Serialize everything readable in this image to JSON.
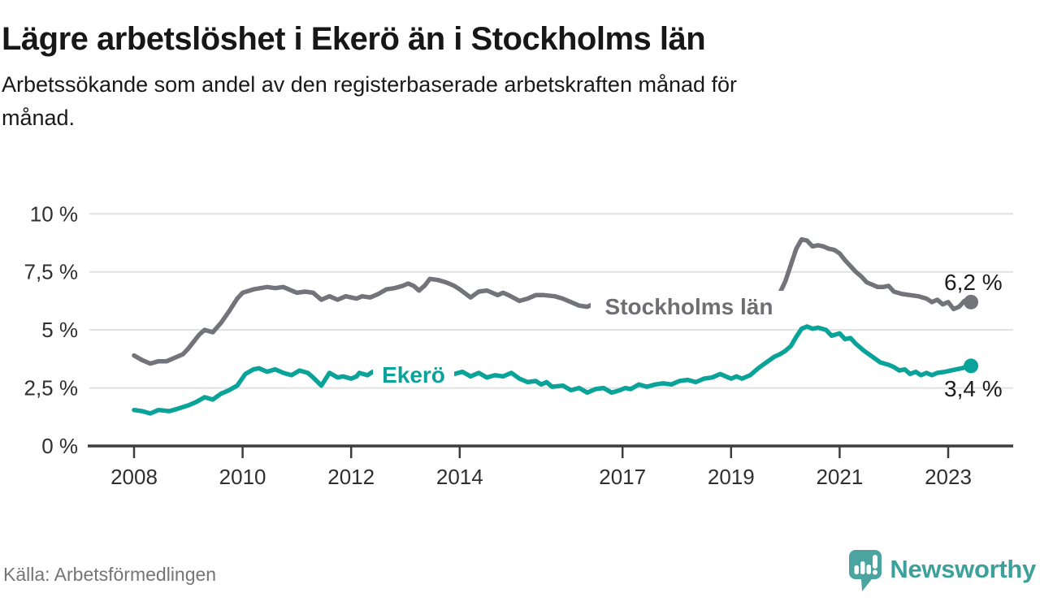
{
  "header": {
    "title": "Lägre arbetslöshet i Ekerö än i Stockholms län",
    "subtitle_lines": [
      "Arbetssökande som andel av den registerbaserade arbetskraften månad för",
      "månad."
    ]
  },
  "footer": {
    "source": "Källa: Arbetsförmedlingen",
    "brand": "Newsworthy"
  },
  "colors": {
    "series_gray": "#73737a",
    "series_gray_label": "#6e6e73",
    "series_teal": "#0aa39a",
    "grid": "#e1e1e1",
    "axis": "#3d3d3d",
    "tick_text": "#2f2f2f",
    "value_label_text": "#1c1c1c",
    "brand_teal": "#4ba49f"
  },
  "chart_data": {
    "type": "line",
    "title": "Lägre arbetslöshet i Ekerö än i Stockholms län",
    "subtitle": "Arbetssökande som andel av den registerbaserade arbetskraften månad för månad.",
    "source": "Källa: Arbetsförmedlingen",
    "xlabel": "",
    "ylabel": "",
    "grid": true,
    "legend_position": "inline",
    "xlim": [
      2007.2,
      2024.2
    ],
    "ylim": [
      0,
      10
    ],
    "y_ticks": [
      {
        "value": 0,
        "label": "0 %"
      },
      {
        "value": 2.5,
        "label": "2,5 %"
      },
      {
        "value": 5,
        "label": "5 %"
      },
      {
        "value": 7.5,
        "label": "7,5 %"
      },
      {
        "value": 10,
        "label": "10 %"
      }
    ],
    "x_ticks": [
      {
        "value": 2008,
        "label": "2008"
      },
      {
        "value": 2010,
        "label": "2010"
      },
      {
        "value": 2012,
        "label": "2012"
      },
      {
        "value": 2014,
        "label": "2014"
      },
      {
        "value": 2017,
        "label": "2017"
      },
      {
        "value": 2019,
        "label": "2019"
      },
      {
        "value": 2021,
        "label": "2021"
      },
      {
        "value": 2023,
        "label": "2023"
      }
    ],
    "series": [
      {
        "name": "Stockholms län",
        "color": "#73737a",
        "label_color": "#6e6e73",
        "end_label": "6,2 %",
        "end_value": 6.2,
        "points": [
          [
            2008.0,
            3.9
          ],
          [
            2008.15,
            3.7
          ],
          [
            2008.3,
            3.55
          ],
          [
            2008.45,
            3.65
          ],
          [
            2008.6,
            3.65
          ],
          [
            2008.75,
            3.8
          ],
          [
            2008.9,
            3.95
          ],
          [
            2009.0,
            4.2
          ],
          [
            2009.2,
            4.8
          ],
          [
            2009.3,
            5.0
          ],
          [
            2009.45,
            4.9
          ],
          [
            2009.6,
            5.3
          ],
          [
            2009.75,
            5.8
          ],
          [
            2009.9,
            6.35
          ],
          [
            2010.0,
            6.6
          ],
          [
            2010.2,
            6.75
          ],
          [
            2010.45,
            6.85
          ],
          [
            2010.6,
            6.8
          ],
          [
            2010.75,
            6.85
          ],
          [
            2010.9,
            6.7
          ],
          [
            2011.0,
            6.6
          ],
          [
            2011.15,
            6.65
          ],
          [
            2011.3,
            6.6
          ],
          [
            2011.45,
            6.3
          ],
          [
            2011.6,
            6.45
          ],
          [
            2011.75,
            6.3
          ],
          [
            2011.9,
            6.45
          ],
          [
            2012.0,
            6.4
          ],
          [
            2012.1,
            6.35
          ],
          [
            2012.2,
            6.45
          ],
          [
            2012.35,
            6.4
          ],
          [
            2012.5,
            6.55
          ],
          [
            2012.65,
            6.75
          ],
          [
            2012.8,
            6.8
          ],
          [
            2012.95,
            6.9
          ],
          [
            2013.05,
            7.0
          ],
          [
            2013.15,
            6.9
          ],
          [
            2013.25,
            6.7
          ],
          [
            2013.35,
            6.9
          ],
          [
            2013.45,
            7.2
          ],
          [
            2013.6,
            7.15
          ],
          [
            2013.75,
            7.05
          ],
          [
            2013.9,
            6.9
          ],
          [
            2014.0,
            6.75
          ],
          [
            2014.2,
            6.4
          ],
          [
            2014.35,
            6.65
          ],
          [
            2014.5,
            6.7
          ],
          [
            2014.6,
            6.6
          ],
          [
            2014.7,
            6.5
          ],
          [
            2014.8,
            6.6
          ],
          [
            2014.9,
            6.5
          ],
          [
            2015.1,
            6.25
          ],
          [
            2015.25,
            6.35
          ],
          [
            2015.4,
            6.5
          ],
          [
            2015.55,
            6.5
          ],
          [
            2015.75,
            6.45
          ],
          [
            2015.9,
            6.35
          ],
          [
            2016.05,
            6.2
          ],
          [
            2016.2,
            6.05
          ],
          [
            2016.35,
            6.0
          ],
          [
            2016.45,
            6.1
          ],
          [
            2016.55,
            6.05
          ],
          [
            2016.75,
            6.0
          ],
          [
            2017.0,
            5.95
          ],
          [
            2017.25,
            5.9
          ],
          [
            2017.5,
            5.85
          ],
          [
            2017.75,
            5.85
          ],
          [
            2018.0,
            5.9
          ],
          [
            2018.25,
            5.9
          ],
          [
            2018.5,
            5.95
          ],
          [
            2018.75,
            6.0
          ],
          [
            2019.0,
            6.05
          ],
          [
            2019.25,
            6.1
          ],
          [
            2019.5,
            6.2
          ],
          [
            2019.65,
            6.3
          ],
          [
            2019.8,
            6.45
          ],
          [
            2019.9,
            6.6
          ],
          [
            2020.0,
            7.1
          ],
          [
            2020.1,
            7.8
          ],
          [
            2020.2,
            8.5
          ],
          [
            2020.3,
            8.9
          ],
          [
            2020.4,
            8.85
          ],
          [
            2020.5,
            8.6
          ],
          [
            2020.6,
            8.65
          ],
          [
            2020.7,
            8.6
          ],
          [
            2020.8,
            8.5
          ],
          [
            2020.9,
            8.45
          ],
          [
            2021.0,
            8.3
          ],
          [
            2021.1,
            8.0
          ],
          [
            2021.2,
            7.75
          ],
          [
            2021.3,
            7.5
          ],
          [
            2021.4,
            7.3
          ],
          [
            2021.5,
            7.05
          ],
          [
            2021.6,
            6.95
          ],
          [
            2021.7,
            6.85
          ],
          [
            2021.8,
            6.85
          ],
          [
            2021.9,
            6.9
          ],
          [
            2022.0,
            6.65
          ],
          [
            2022.15,
            6.55
          ],
          [
            2022.3,
            6.5
          ],
          [
            2022.45,
            6.45
          ],
          [
            2022.6,
            6.35
          ],
          [
            2022.7,
            6.2
          ],
          [
            2022.8,
            6.3
          ],
          [
            2022.9,
            6.1
          ],
          [
            2023.0,
            6.2
          ],
          [
            2023.1,
            5.9
          ],
          [
            2023.2,
            6.0
          ],
          [
            2023.3,
            6.25
          ],
          [
            2023.42,
            6.2
          ]
        ]
      },
      {
        "name": "Ekerö",
        "color": "#0aa39a",
        "label_color": "#0aa39a",
        "end_label": "3,4 %",
        "end_value": 3.4,
        "points": [
          [
            2008.0,
            1.55
          ],
          [
            2008.15,
            1.5
          ],
          [
            2008.3,
            1.4
          ],
          [
            2008.45,
            1.55
          ],
          [
            2008.65,
            1.5
          ],
          [
            2008.8,
            1.6
          ],
          [
            2009.0,
            1.75
          ],
          [
            2009.15,
            1.9
          ],
          [
            2009.3,
            2.1
          ],
          [
            2009.45,
            2.0
          ],
          [
            2009.6,
            2.25
          ],
          [
            2009.75,
            2.4
          ],
          [
            2009.9,
            2.6
          ],
          [
            2010.05,
            3.1
          ],
          [
            2010.2,
            3.3
          ],
          [
            2010.3,
            3.35
          ],
          [
            2010.45,
            3.2
          ],
          [
            2010.6,
            3.3
          ],
          [
            2010.75,
            3.15
          ],
          [
            2010.9,
            3.05
          ],
          [
            2011.05,
            3.25
          ],
          [
            2011.2,
            3.15
          ],
          [
            2011.3,
            2.95
          ],
          [
            2011.45,
            2.6
          ],
          [
            2011.6,
            3.15
          ],
          [
            2011.75,
            2.95
          ],
          [
            2011.85,
            3.0
          ],
          [
            2012.0,
            2.9
          ],
          [
            2012.1,
            3.0
          ],
          [
            2012.15,
            3.15
          ],
          [
            2012.3,
            3.05
          ],
          [
            2012.4,
            3.2
          ],
          [
            2012.5,
            3.15
          ],
          [
            2012.75,
            3.2
          ],
          [
            2013.0,
            3.1
          ],
          [
            2013.3,
            3.2
          ],
          [
            2013.55,
            3.25
          ],
          [
            2013.75,
            3.2
          ],
          [
            2013.9,
            3.1
          ],
          [
            2014.05,
            3.2
          ],
          [
            2014.2,
            3.0
          ],
          [
            2014.35,
            3.15
          ],
          [
            2014.5,
            2.95
          ],
          [
            2014.65,
            3.05
          ],
          [
            2014.8,
            3.0
          ],
          [
            2014.95,
            3.15
          ],
          [
            2015.1,
            2.9
          ],
          [
            2015.25,
            2.75
          ],
          [
            2015.4,
            2.8
          ],
          [
            2015.5,
            2.65
          ],
          [
            2015.6,
            2.75
          ],
          [
            2015.7,
            2.55
          ],
          [
            2015.9,
            2.6
          ],
          [
            2016.05,
            2.4
          ],
          [
            2016.2,
            2.5
          ],
          [
            2016.35,
            2.3
          ],
          [
            2016.5,
            2.45
          ],
          [
            2016.65,
            2.5
          ],
          [
            2016.8,
            2.3
          ],
          [
            2016.95,
            2.4
          ],
          [
            2017.05,
            2.5
          ],
          [
            2017.15,
            2.45
          ],
          [
            2017.3,
            2.65
          ],
          [
            2017.45,
            2.55
          ],
          [
            2017.6,
            2.65
          ],
          [
            2017.75,
            2.7
          ],
          [
            2017.9,
            2.65
          ],
          [
            2018.05,
            2.8
          ],
          [
            2018.2,
            2.85
          ],
          [
            2018.35,
            2.75
          ],
          [
            2018.5,
            2.9
          ],
          [
            2018.65,
            2.95
          ],
          [
            2018.8,
            3.1
          ],
          [
            2018.9,
            3.0
          ],
          [
            2019.0,
            2.9
          ],
          [
            2019.1,
            3.0
          ],
          [
            2019.2,
            2.9
          ],
          [
            2019.35,
            3.05
          ],
          [
            2019.5,
            3.35
          ],
          [
            2019.65,
            3.6
          ],
          [
            2019.8,
            3.85
          ],
          [
            2019.9,
            3.95
          ],
          [
            2020.0,
            4.1
          ],
          [
            2020.1,
            4.3
          ],
          [
            2020.2,
            4.7
          ],
          [
            2020.3,
            5.05
          ],
          [
            2020.4,
            5.15
          ],
          [
            2020.5,
            5.05
          ],
          [
            2020.6,
            5.1
          ],
          [
            2020.75,
            5.0
          ],
          [
            2020.85,
            4.75
          ],
          [
            2021.0,
            4.85
          ],
          [
            2021.1,
            4.6
          ],
          [
            2021.2,
            4.65
          ],
          [
            2021.3,
            4.4
          ],
          [
            2021.45,
            4.1
          ],
          [
            2021.6,
            3.85
          ],
          [
            2021.75,
            3.6
          ],
          [
            2021.9,
            3.5
          ],
          [
            2022.0,
            3.4
          ],
          [
            2022.1,
            3.25
          ],
          [
            2022.2,
            3.3
          ],
          [
            2022.3,
            3.1
          ],
          [
            2022.4,
            3.2
          ],
          [
            2022.5,
            3.05
          ],
          [
            2022.6,
            3.15
          ],
          [
            2022.7,
            3.05
          ],
          [
            2022.8,
            3.15
          ],
          [
            2022.95,
            3.2
          ],
          [
            2023.05,
            3.25
          ],
          [
            2023.15,
            3.3
          ],
          [
            2023.25,
            3.35
          ],
          [
            2023.42,
            3.45
          ]
        ]
      }
    ]
  }
}
